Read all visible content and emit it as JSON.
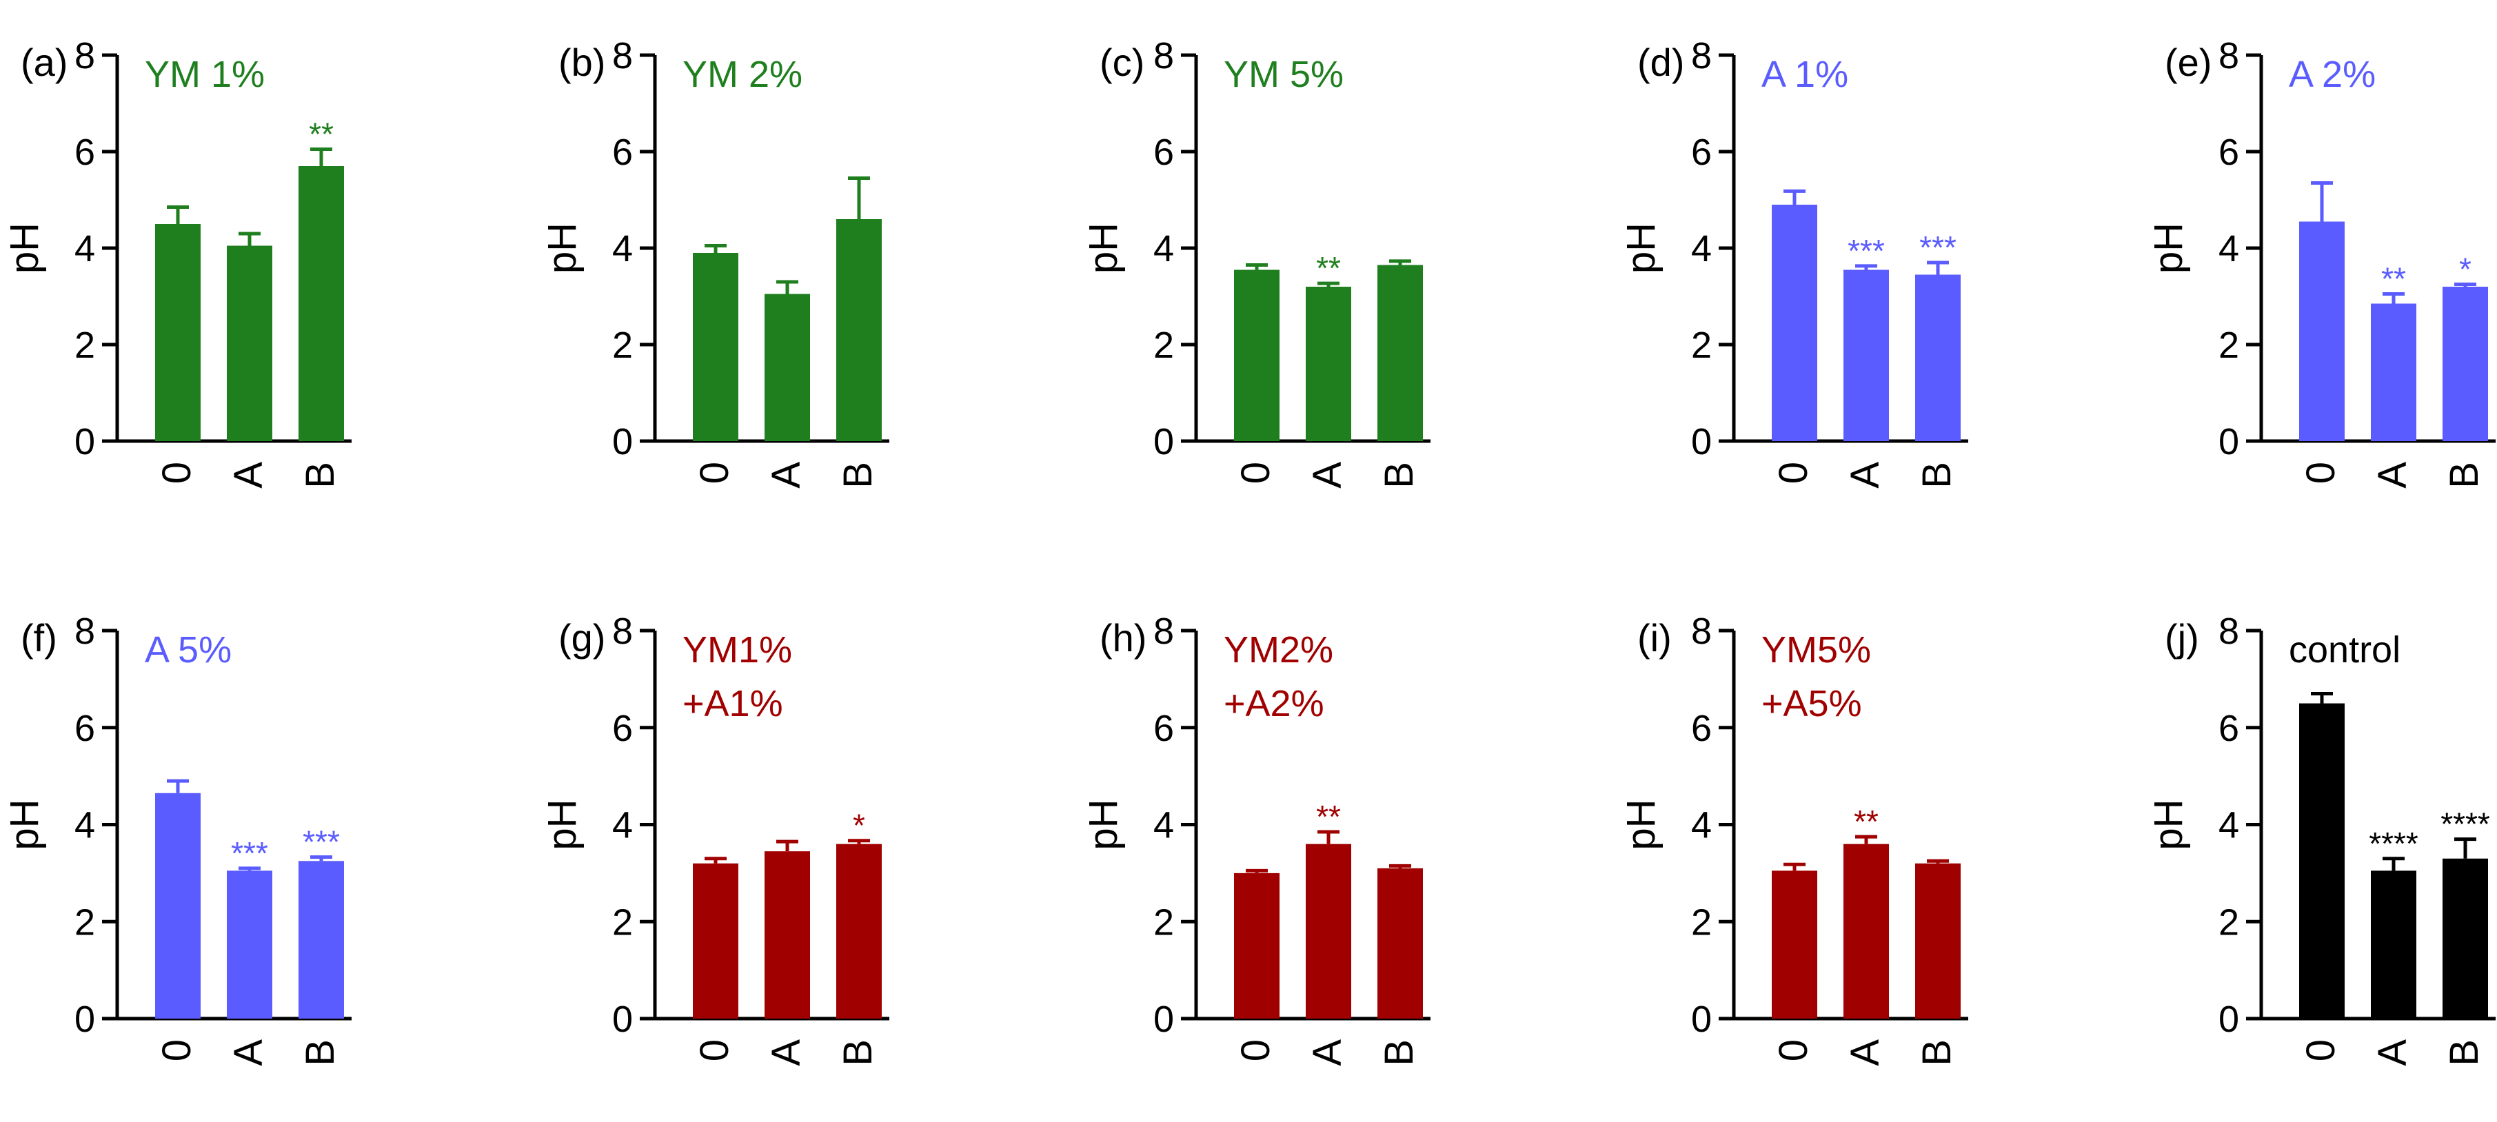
{
  "figure": {
    "colors": {
      "axis": "#000000",
      "ym": "#1f7f1f",
      "a": "#5a5cff",
      "combo": "#a00000",
      "control": "#000000"
    }
  },
  "chart_data": [
    {
      "panel": "(a)",
      "type": "bar",
      "title": "YM 1%",
      "title_lines": [
        "YM 1%"
      ],
      "color": "#1f7f1f",
      "categories": [
        "0",
        "A",
        "B"
      ],
      "values": [
        4.5,
        4.05,
        5.7
      ],
      "errors": [
        0.35,
        0.25,
        0.35
      ],
      "significance": [
        "",
        "",
        "**"
      ],
      "ylabel": "pH",
      "ylim": [
        0,
        8
      ],
      "yticks": [
        "0",
        "2",
        "4",
        "6",
        "8"
      ]
    },
    {
      "panel": "(b)",
      "type": "bar",
      "title": "YM 2%",
      "title_lines": [
        "YM 2%"
      ],
      "color": "#1f7f1f",
      "categories": [
        "0",
        "A",
        "B"
      ],
      "values": [
        3.9,
        3.05,
        4.6
      ],
      "errors": [
        0.15,
        0.25,
        0.85
      ],
      "significance": [
        "",
        "",
        ""
      ],
      "ylabel": "pH",
      "ylim": [
        0,
        8
      ],
      "yticks": [
        "0",
        "2",
        "4",
        "6",
        "8"
      ]
    },
    {
      "panel": "(c)",
      "type": "bar",
      "title": "YM 5%",
      "title_lines": [
        "YM 5%"
      ],
      "color": "#1f7f1f",
      "categories": [
        "0",
        "A",
        "B"
      ],
      "values": [
        3.55,
        3.2,
        3.65
      ],
      "errors": [
        0.1,
        0.07,
        0.08
      ],
      "significance": [
        "",
        "**",
        ""
      ],
      "ylabel": "pH",
      "ylim": [
        0,
        8
      ],
      "yticks": [
        "0",
        "2",
        "4",
        "6",
        "8"
      ]
    },
    {
      "panel": "(d)",
      "type": "bar",
      "title": "A 1%",
      "title_lines": [
        "A 1%"
      ],
      "color": "#5a5cff",
      "categories": [
        "0",
        "A",
        "B"
      ],
      "values": [
        4.9,
        3.55,
        3.45
      ],
      "errors": [
        0.28,
        0.08,
        0.25
      ],
      "significance": [
        "",
        "***",
        "***"
      ],
      "ylabel": "pH",
      "ylim": [
        0,
        8
      ],
      "yticks": [
        "0",
        "2",
        "4",
        "6",
        "8"
      ]
    },
    {
      "panel": "(e)",
      "type": "bar",
      "title": "A 2%",
      "title_lines": [
        "A 2%"
      ],
      "color": "#5a5cff",
      "categories": [
        "0",
        "A",
        "B"
      ],
      "values": [
        4.55,
        2.85,
        3.2
      ],
      "errors": [
        0.8,
        0.2,
        0.05
      ],
      "significance": [
        "",
        "**",
        "*"
      ],
      "ylabel": "pH",
      "ylim": [
        0,
        8
      ],
      "yticks": [
        "0",
        "2",
        "4",
        "6",
        "8"
      ]
    },
    {
      "panel": "(f)",
      "type": "bar",
      "title": "A 5%",
      "title_lines": [
        "A 5%"
      ],
      "color": "#5a5cff",
      "categories": [
        "0",
        "A",
        "B"
      ],
      "values": [
        4.65,
        3.05,
        3.25
      ],
      "errors": [
        0.25,
        0.05,
        0.08
      ],
      "significance": [
        "",
        "***",
        "***"
      ],
      "ylabel": "pH",
      "ylim": [
        0,
        8
      ],
      "yticks": [
        "0",
        "2",
        "4",
        "6",
        "8"
      ]
    },
    {
      "panel": "(g)",
      "type": "bar",
      "title": "YM1% +A1%",
      "title_lines": [
        "YM1%",
        "+A1%"
      ],
      "color": "#a00000",
      "categories": [
        "0",
        "A",
        "B"
      ],
      "values": [
        3.2,
        3.45,
        3.6
      ],
      "errors": [
        0.1,
        0.2,
        0.07
      ],
      "significance": [
        "",
        "",
        "*"
      ],
      "ylabel": "pH",
      "ylim": [
        0,
        8
      ],
      "yticks": [
        "0",
        "2",
        "4",
        "6",
        "8"
      ]
    },
    {
      "panel": "(h)",
      "type": "bar",
      "title": "YM2% +A2%",
      "title_lines": [
        "YM2%",
        "+A2%"
      ],
      "color": "#a00000",
      "categories": [
        "0",
        "A",
        "B"
      ],
      "values": [
        3.0,
        3.6,
        3.1
      ],
      "errors": [
        0.05,
        0.25,
        0.05
      ],
      "significance": [
        "",
        "**",
        ""
      ],
      "ylabel": "pH",
      "ylim": [
        0,
        8
      ],
      "yticks": [
        "0",
        "2",
        "4",
        "6",
        "8"
      ]
    },
    {
      "panel": "(i)",
      "type": "bar",
      "title": "YM5% +A5%",
      "title_lines": [
        "YM5%",
        "+A5%"
      ],
      "color": "#a00000",
      "categories": [
        "0",
        "A",
        "B"
      ],
      "values": [
        3.05,
        3.6,
        3.2
      ],
      "errors": [
        0.13,
        0.15,
        0.05
      ],
      "significance": [
        "",
        "**",
        ""
      ],
      "ylabel": "pH",
      "ylim": [
        0,
        8
      ],
      "yticks": [
        "0",
        "2",
        "4",
        "6",
        "8"
      ]
    },
    {
      "panel": "(j)",
      "type": "bar",
      "title": "control",
      "title_lines": [
        "control"
      ],
      "color": "#000000",
      "categories": [
        "0",
        "A",
        "B"
      ],
      "values": [
        6.5,
        3.05,
        3.3
      ],
      "errors": [
        0.2,
        0.25,
        0.4
      ],
      "significance": [
        "",
        "****",
        "****"
      ],
      "ylabel": "pH",
      "ylim": [
        0,
        8
      ],
      "yticks": [
        "0",
        "2",
        "4",
        "6",
        "8"
      ]
    }
  ]
}
